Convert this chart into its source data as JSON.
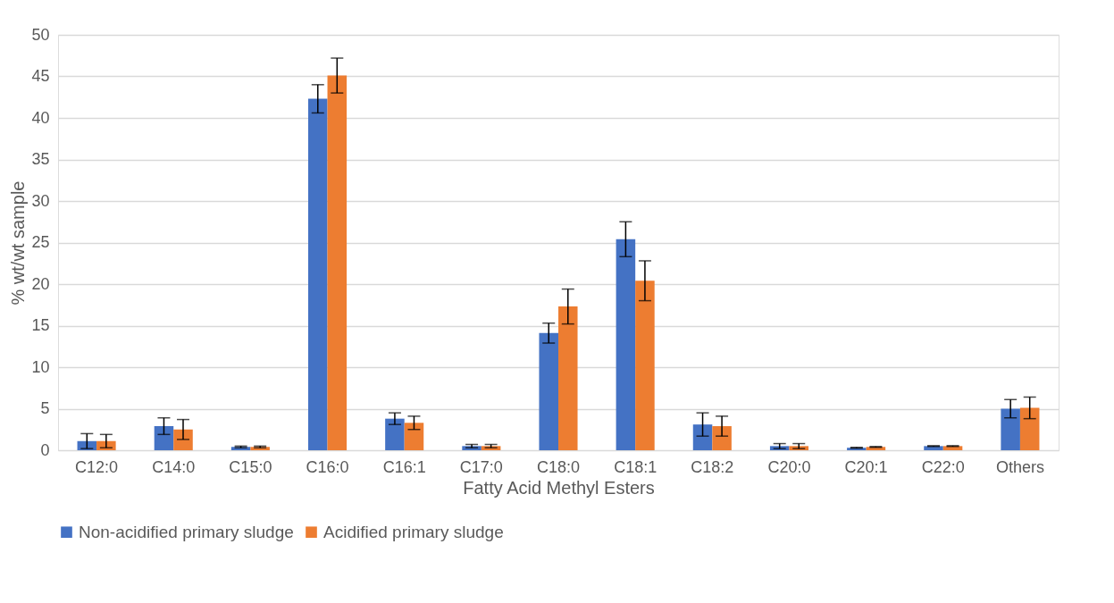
{
  "chart_data": {
    "type": "bar",
    "xlabel": "Fatty Acid Methyl Esters",
    "ylabel": "% wt/wt sample",
    "categories": [
      "C12:0",
      "C14:0",
      "C15:0",
      "C16:0",
      "C16:1",
      "C17:0",
      "C18:0",
      "C18:1",
      "C18:2",
      "C20:0",
      "C20:1",
      "C22:0",
      "Others"
    ],
    "series": [
      {
        "name": "Non-acidified primary sludge",
        "color": "#4472c4",
        "values": [
          1.1,
          2.9,
          0.4,
          42.3,
          3.8,
          0.5,
          14.1,
          25.4,
          3.1,
          0.5,
          0.3,
          0.5,
          5.0
        ],
        "errors": [
          0.9,
          1.0,
          0.1,
          1.7,
          0.7,
          0.2,
          1.2,
          2.1,
          1.4,
          0.3,
          0.05,
          0.05,
          1.1
        ]
      },
      {
        "name": "Acidified primary sludge",
        "color": "#ed7d31",
        "values": [
          1.1,
          2.5,
          0.4,
          45.1,
          3.3,
          0.5,
          17.3,
          20.4,
          2.9,
          0.5,
          0.4,
          0.5,
          5.1
        ],
        "errors": [
          0.8,
          1.2,
          0.1,
          2.1,
          0.8,
          0.2,
          2.1,
          2.4,
          1.2,
          0.3,
          0.05,
          0.05,
          1.3
        ]
      }
    ],
    "ylim": [
      0,
      50
    ],
    "yticks": [
      0,
      5,
      10,
      15,
      20,
      25,
      30,
      35,
      40,
      45,
      50
    ],
    "grid": "y",
    "legend": "bottom"
  }
}
